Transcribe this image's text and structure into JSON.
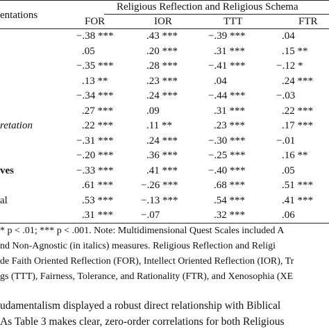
{
  "table": {
    "header": {
      "stub": "entations",
      "group": "Religious Reflection and Religious Schema",
      "columns": [
        "FOR",
        "IOR",
        "TTT",
        "FTR"
      ]
    },
    "rows": [
      {
        "label": null,
        "cells": [
          "−.38 ***",
          ".43 ***",
          "−.39 ***",
          ".04"
        ]
      },
      {
        "label": null,
        "cells": [
          ".05",
          ".20 ***",
          ".31 ***",
          ".15 **"
        ]
      },
      {
        "label": null,
        "cells": [
          "−.35 ***",
          ".28 ***",
          "−.41 ***",
          "−.12 *"
        ]
      },
      {
        "label": null,
        "cells": [
          ".13 **",
          ".23 ***",
          ".04",
          ".24 ***"
        ]
      },
      {
        "label": null,
        "cells": [
          "−.34 ***",
          ".24 ***",
          "−.44 ***",
          "−.03"
        ]
      },
      {
        "label": null,
        "cells": [
          ".27 ***",
          ".09",
          ".31 ***",
          ".22 ***"
        ]
      },
      {
        "label": "retation",
        "style": "italic",
        "cells": [
          ".22 ***",
          ".11 **",
          ".23 ***",
          ".17 ***"
        ]
      },
      {
        "label": null,
        "cells": [
          "−.31 ***",
          ".24 ***",
          "−.30 ***",
          "−.01"
        ]
      },
      {
        "label": null,
        "cells": [
          "−.20 ***",
          ".36 ***",
          "−.25 ***",
          ".16 **"
        ]
      },
      {
        "label": "ves",
        "style": "bold",
        "cells": [
          "−.33 ***",
          ".41 ***",
          "−.40 ***",
          ".05"
        ]
      },
      {
        "label": null,
        "cells": [
          ".61 ***",
          "−.26 ***",
          ".68 ***",
          ".51 ***"
        ]
      },
      {
        "label": "al",
        "cells": [
          ".53 ***",
          "−.13 ***",
          ".54 ***",
          ".41 ***"
        ]
      },
      {
        "label": null,
        "cells": [
          ".31 ***",
          "−.07",
          ".32 ***",
          ".06"
        ]
      }
    ]
  },
  "note": [
    "* p < .01; *** p < .001. Note: Multidimensional Quest Scales included A",
    "nd Non-Agnostic (in italics) measures. Religious Reflection and Religi",
    "de Faith Oriented Reflection (FOR), Intellect Oriented Reflection (IOR), Tr",
    "gs (TTT), Fairness, Tolerance, and Rationality (FTR), and Xenosophia (XE"
  ],
  "body": [
    "udamentalism displayed a robust direct relationship with Biblical",
    "As Table 3 makes clear, zero-order correlations for both Religious"
  ]
}
